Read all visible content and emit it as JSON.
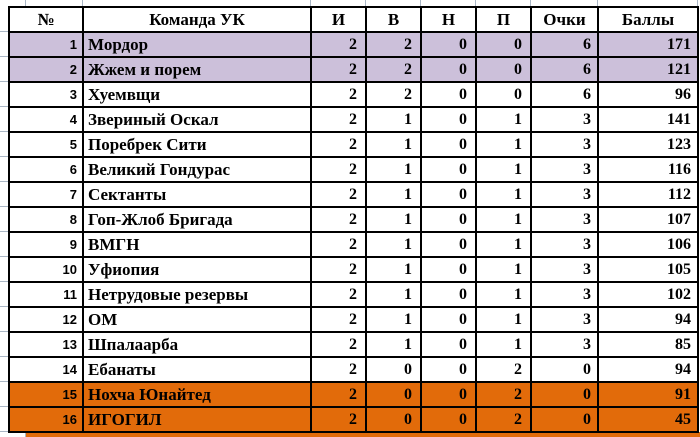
{
  "table": {
    "columns": [
      {
        "key": "num",
        "label": "№"
      },
      {
        "key": "team",
        "label": "Команда УК"
      },
      {
        "key": "played",
        "label": "И"
      },
      {
        "key": "wins",
        "label": "В"
      },
      {
        "key": "draws",
        "label": "Н"
      },
      {
        "key": "losses",
        "label": "П"
      },
      {
        "key": "points",
        "label": "Очки"
      },
      {
        "key": "score",
        "label": "Баллы"
      }
    ],
    "rows": [
      {
        "num": "1",
        "team": "Мордор",
        "played": "2",
        "wins": "2",
        "draws": "0",
        "losses": "0",
        "points": "6",
        "score": "171",
        "highlight": "promotion_fill"
      },
      {
        "num": "2",
        "team": "Жжем и порем",
        "played": "2",
        "wins": "2",
        "draws": "0",
        "losses": "0",
        "points": "6",
        "score": "121",
        "highlight": "promotion_fill"
      },
      {
        "num": "3",
        "team": "Хуемвщи",
        "played": "2",
        "wins": "2",
        "draws": "0",
        "losses": "0",
        "points": "6",
        "score": "96",
        "highlight": null
      },
      {
        "num": "4",
        "team": "Звериный Оскал",
        "played": "2",
        "wins": "1",
        "draws": "0",
        "losses": "1",
        "points": "3",
        "score": "141",
        "highlight": null
      },
      {
        "num": "5",
        "team": "Поребрек Сити",
        "played": "2",
        "wins": "1",
        "draws": "0",
        "losses": "1",
        "points": "3",
        "score": "123",
        "highlight": null
      },
      {
        "num": "6",
        "team": "Великий Гондурас",
        "played": "2",
        "wins": "1",
        "draws": "0",
        "losses": "1",
        "points": "3",
        "score": "116",
        "highlight": null
      },
      {
        "num": "7",
        "team": "Сектанты",
        "played": "2",
        "wins": "1",
        "draws": "0",
        "losses": "1",
        "points": "3",
        "score": "112",
        "highlight": null
      },
      {
        "num": "8",
        "team": "Гоп-Жлоб Бригада",
        "played": "2",
        "wins": "1",
        "draws": "0",
        "losses": "1",
        "points": "3",
        "score": "107",
        "highlight": null
      },
      {
        "num": "9",
        "team": "ВМГН",
        "played": "2",
        "wins": "1",
        "draws": "0",
        "losses": "1",
        "points": "3",
        "score": "106",
        "highlight": null
      },
      {
        "num": "10",
        "team": "Уфиопия",
        "played": "2",
        "wins": "1",
        "draws": "0",
        "losses": "1",
        "points": "3",
        "score": "105",
        "highlight": null
      },
      {
        "num": "11",
        "team": "Нетрудовые резервы",
        "played": "2",
        "wins": "1",
        "draws": "0",
        "losses": "1",
        "points": "3",
        "score": "102",
        "highlight": null
      },
      {
        "num": "12",
        "team": "ОМ",
        "played": "2",
        "wins": "1",
        "draws": "0",
        "losses": "1",
        "points": "3",
        "score": "94",
        "highlight": null
      },
      {
        "num": "13",
        "team": "Шпалаарба",
        "played": "2",
        "wins": "1",
        "draws": "0",
        "losses": "1",
        "points": "3",
        "score": "85",
        "highlight": null
      },
      {
        "num": "14",
        "team": "Ебанаты",
        "played": "2",
        "wins": "0",
        "draws": "0",
        "losses": "2",
        "points": "0",
        "score": "94",
        "highlight": null
      },
      {
        "num": "15",
        "team": "Нохча Юнайтед",
        "played": "2",
        "wins": "0",
        "draws": "0",
        "losses": "2",
        "points": "0",
        "score": "91",
        "highlight": "relegation_fill"
      },
      {
        "num": "16",
        "team": "ИГОГИЛ",
        "played": "2",
        "wins": "0",
        "draws": "0",
        "losses": "2",
        "points": "0",
        "score": "45",
        "highlight": "relegation_fill"
      }
    ],
    "partial_next_row_visible": true
  },
  "colors": {
    "promotion_fill": "#CCC0DA",
    "relegation_fill": "#E26B0A",
    "row_fill": "#FFFFFF",
    "border": "#000000",
    "gridline": "#A9B6C5",
    "text": "#000000"
  }
}
